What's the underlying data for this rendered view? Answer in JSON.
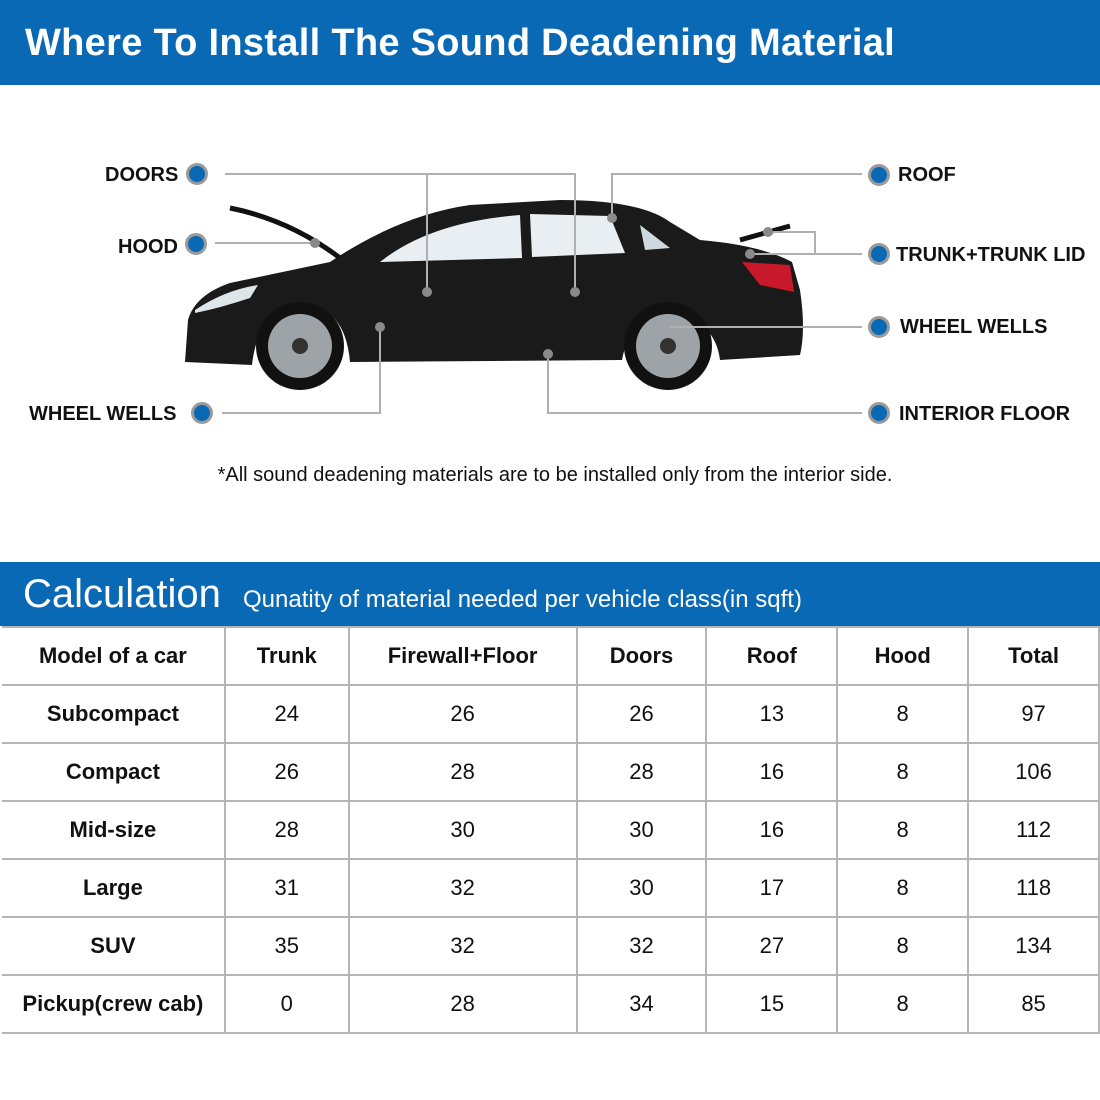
{
  "header": {
    "title": "Where To Install The Sound Deadening Material"
  },
  "diagram": {
    "labels": {
      "doors": "DOORS",
      "hood": "HOOD",
      "wheel_wells_left": "WHEEL WELLS",
      "roof": "ROOF",
      "trunk": "TRUNK+TRUNK LID",
      "wheel_wells_right": "WHEEL WELLS",
      "interior_floor": "INTERIOR FLOOR"
    },
    "note": "*All sound deadening materials are to be installed only from the interior side.",
    "colors": {
      "accent": "#0a69b5",
      "car": "#1a1a1a"
    }
  },
  "calculation": {
    "title": "Calculation",
    "subtitle": "Qunatity of material needed per vehicle class(in sqft)",
    "headers": [
      "Model of a car",
      "Trunk",
      "Firewall+Floor",
      "Doors",
      "Roof",
      "Hood",
      "Total"
    ],
    "rows": [
      [
        "Subcompact",
        "24",
        "26",
        "26",
        "13",
        "8",
        "97"
      ],
      [
        "Compact",
        "26",
        "28",
        "28",
        "16",
        "8",
        "106"
      ],
      [
        "Mid-size",
        "28",
        "30",
        "30",
        "16",
        "8",
        "112"
      ],
      [
        "Large",
        "31",
        "32",
        "30",
        "17",
        "8",
        "118"
      ],
      [
        "SUV",
        "35",
        "32",
        "32",
        "27",
        "8",
        "134"
      ],
      [
        "Pickup(crew cab)",
        "0",
        "28",
        "34",
        "15",
        "8",
        "85"
      ]
    ]
  }
}
